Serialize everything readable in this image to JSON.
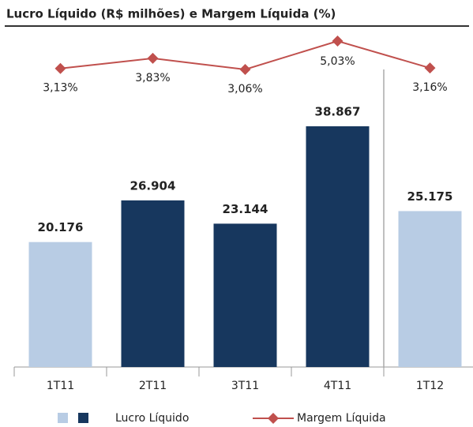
{
  "chart_data": {
    "type": "bar_line",
    "title": "Lucro Líquido (R$ milhões) e Margem Líquida (%)",
    "categories": [
      "1T11",
      "2T11",
      "3T11",
      "4T11",
      "1T12"
    ],
    "series": [
      {
        "name": "Lucro Líquido",
        "type": "bar",
        "colors": [
          "#b8cce4",
          "#17375e",
          "#17375e",
          "#17375e",
          "#b8cce4"
        ],
        "values": [
          20176,
          26904,
          23144,
          38867,
          25175
        ],
        "value_labels": [
          "20.176",
          "26.904",
          "23.144",
          "38.867",
          "25.175"
        ]
      },
      {
        "name": "Margem Líquida",
        "type": "line",
        "color": "#c0504d",
        "values": [
          3.13,
          3.83,
          3.06,
          5.03,
          3.16
        ],
        "value_labels": [
          "3,13%",
          "3,83%",
          "3,06%",
          "5,03%",
          "3,16%"
        ]
      }
    ]
  }
}
